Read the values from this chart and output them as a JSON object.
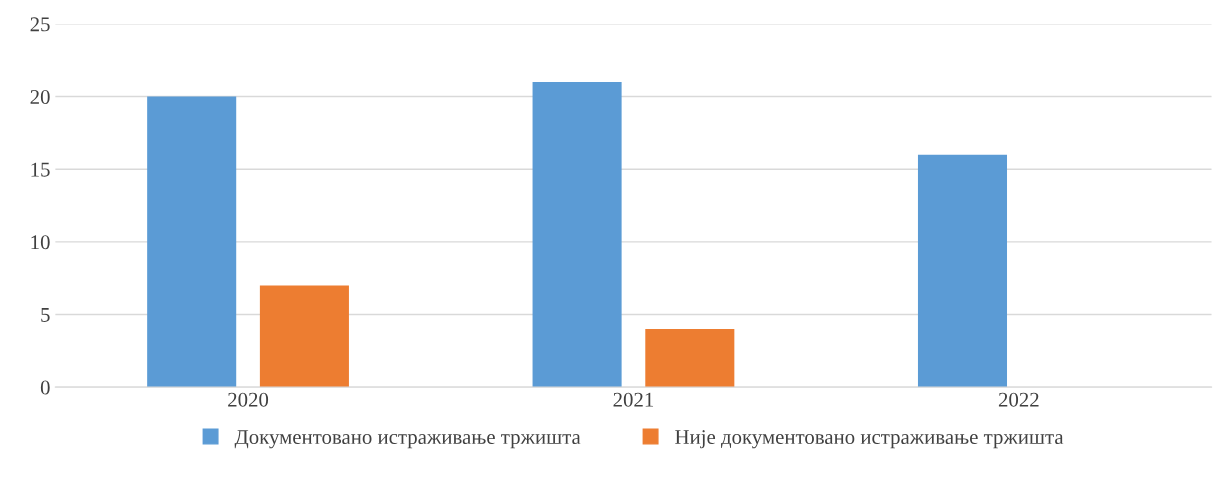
{
  "chart_data": {
    "type": "bar",
    "categories": [
      "2020",
      "2021",
      "2022"
    ],
    "series": [
      {
        "name": "Документовано истраживање тржишта",
        "color": "#5b9bd5",
        "values": [
          20,
          21,
          16
        ]
      },
      {
        "name": "Није документовано истраживање тржишта",
        "color": "#ed7d31",
        "values": [
          7,
          4,
          0
        ]
      }
    ],
    "ylim": [
      0,
      25
    ],
    "yticks": [
      0,
      5,
      10,
      15,
      20,
      25
    ],
    "grid": "y",
    "legend": "bottom"
  }
}
